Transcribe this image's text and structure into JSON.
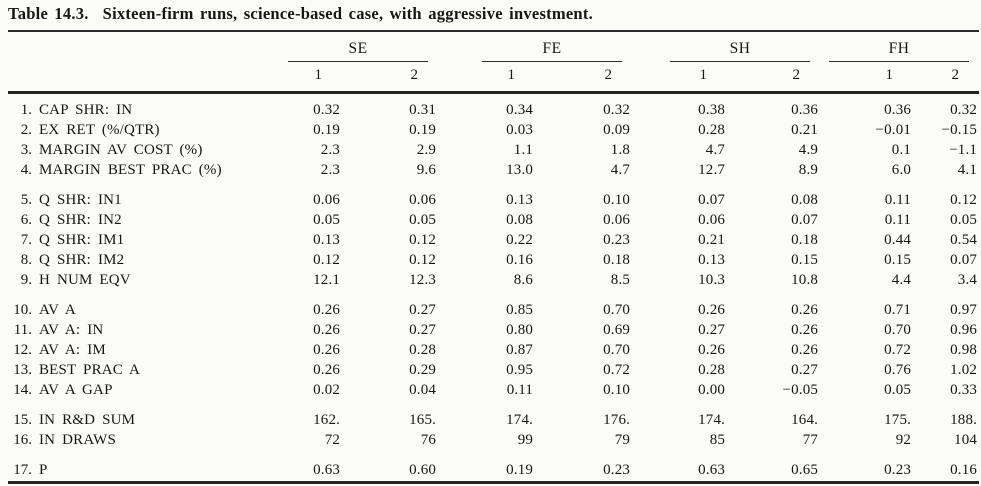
{
  "page": {
    "title_prefix": "Table 14.3.",
    "title_text": "Sixteen-firm runs, science-based case, with aggressive investment."
  },
  "table": {
    "column_groups": [
      {
        "label": "SE"
      },
      {
        "label": "FE"
      },
      {
        "label": "SH"
      },
      {
        "label": "FH"
      }
    ],
    "sub_headers": [
      "1",
      "2",
      "1",
      "2",
      "1",
      "2",
      "1",
      "2"
    ],
    "row_groups": [
      {
        "rows": [
          {
            "num": "1.",
            "label": "CAP SHR: IN",
            "values": [
              "0.32",
              "0.31",
              "0.34",
              "0.32",
              "0.38",
              "0.36",
              "0.36",
              "0.32"
            ]
          },
          {
            "num": "2.",
            "label": "EX RET (%/QTR)",
            "values": [
              "0.19",
              "0.19",
              "0.03",
              "0.09",
              "0.28",
              "0.21",
              "−0.01",
              "−0.15"
            ]
          },
          {
            "num": "3.",
            "label": "MARGIN AV COST (%)",
            "values": [
              "2.3",
              "2.9",
              "1.1",
              "1.8",
              "4.7",
              "4.9",
              "0.1",
              "−1.1"
            ]
          },
          {
            "num": "4.",
            "label": "MARGIN BEST PRAC (%)",
            "values": [
              "2.3",
              "9.6",
              "13.0",
              "4.7",
              "12.7",
              "8.9",
              "6.0",
              "4.1"
            ]
          }
        ]
      },
      {
        "rows": [
          {
            "num": "5.",
            "label": "Q SHR: IN1",
            "values": [
              "0.06",
              "0.06",
              "0.13",
              "0.10",
              "0.07",
              "0.08",
              "0.11",
              "0.12"
            ]
          },
          {
            "num": "6.",
            "label": "Q SHR: IN2",
            "values": [
              "0.05",
              "0.05",
              "0.08",
              "0.06",
              "0.06",
              "0.07",
              "0.11",
              "0.05"
            ]
          },
          {
            "num": "7.",
            "label": "Q SHR: IM1",
            "values": [
              "0.13",
              "0.12",
              "0.22",
              "0.23",
              "0.21",
              "0.18",
              "0.44",
              "0.54"
            ]
          },
          {
            "num": "8.",
            "label": "Q SHR: IM2",
            "values": [
              "0.12",
              "0.12",
              "0.16",
              "0.18",
              "0.13",
              "0.15",
              "0.15",
              "0.07"
            ]
          },
          {
            "num": "9.",
            "label": "H NUM EQV",
            "values": [
              "12.1",
              "12.3",
              "8.6",
              "8.5",
              "10.3",
              "10.8",
              "4.4",
              "3.4"
            ]
          }
        ]
      },
      {
        "rows": [
          {
            "num": "10.",
            "label": "AV A",
            "values": [
              "0.26",
              "0.27",
              "0.85",
              "0.70",
              "0.26",
              "0.26",
              "0.71",
              "0.97"
            ]
          },
          {
            "num": "11.",
            "label": "AV A: IN",
            "values": [
              "0.26",
              "0.27",
              "0.80",
              "0.69",
              "0.27",
              "0.26",
              "0.70",
              "0.96"
            ]
          },
          {
            "num": "12.",
            "label": "AV A: IM",
            "values": [
              "0.26",
              "0.28",
              "0.87",
              "0.70",
              "0.26",
              "0.26",
              "0.72",
              "0.98"
            ]
          },
          {
            "num": "13.",
            "label": "BEST PRAC A",
            "values": [
              "0.26",
              "0.29",
              "0.95",
              "0.72",
              "0.28",
              "0.27",
              "0.76",
              "1.02"
            ]
          },
          {
            "num": "14.",
            "label": "AV A GAP",
            "values": [
              "0.02",
              "0.04",
              "0.11",
              "0.10",
              "0.00",
              "−0.05",
              "0.05",
              "0.33"
            ]
          }
        ]
      },
      {
        "rows": [
          {
            "num": "15.",
            "label": "IN R&D SUM",
            "values": [
              "162.",
              "165.",
              "174.",
              "176.",
              "174.",
              "164.",
              "175.",
              "188."
            ]
          },
          {
            "num": "16.",
            "label": "IN DRAWS",
            "values": [
              "72",
              "76",
              "99",
              "79",
              "85",
              "77",
              "92",
              "104"
            ]
          }
        ]
      },
      {
        "rows": [
          {
            "num": "17.",
            "label": "P",
            "values": [
              "0.63",
              "0.60",
              "0.19",
              "0.23",
              "0.63",
              "0.65",
              "0.23",
              "0.16"
            ]
          }
        ]
      }
    ]
  }
}
